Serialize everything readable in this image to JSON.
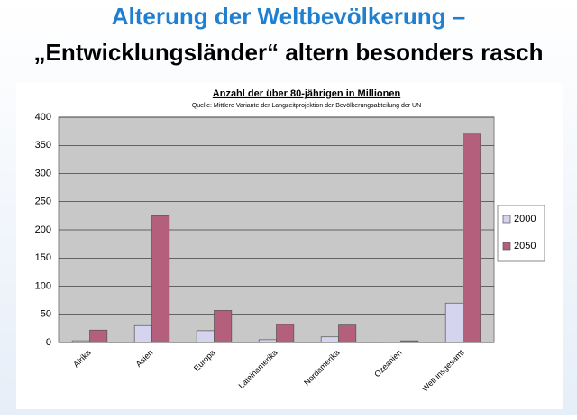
{
  "slide": {
    "title": "Alterung der Weltbevölkerung –",
    "subtitle": "„Entwicklungsländer“ altern besonders rasch"
  },
  "chart_data": {
    "type": "bar",
    "title": "Anzahl der über 80-jährigen in Millionen",
    "subtitle": "Quelle: Mittlere Variante der Langzeitprojektion der Bevölkerungsabteilung der UN",
    "categories": [
      "Afrika",
      "Asien",
      "Europa",
      "Lateinamerika",
      "Nordamerika",
      "Ozeanien",
      "Welt insgesamt"
    ],
    "series": [
      {
        "name": "2000",
        "color": "#d4d4ee",
        "values": [
          3,
          30,
          21,
          5,
          10,
          1,
          70
        ]
      },
      {
        "name": "2050",
        "color": "#b4607c",
        "values": [
          22,
          225,
          57,
          32,
          31,
          3,
          370
        ]
      }
    ],
    "ylim": [
      0,
      400
    ],
    "yticks": [
      0,
      50,
      100,
      150,
      200,
      250,
      300,
      350,
      400
    ],
    "grid": true,
    "legend": "right"
  }
}
